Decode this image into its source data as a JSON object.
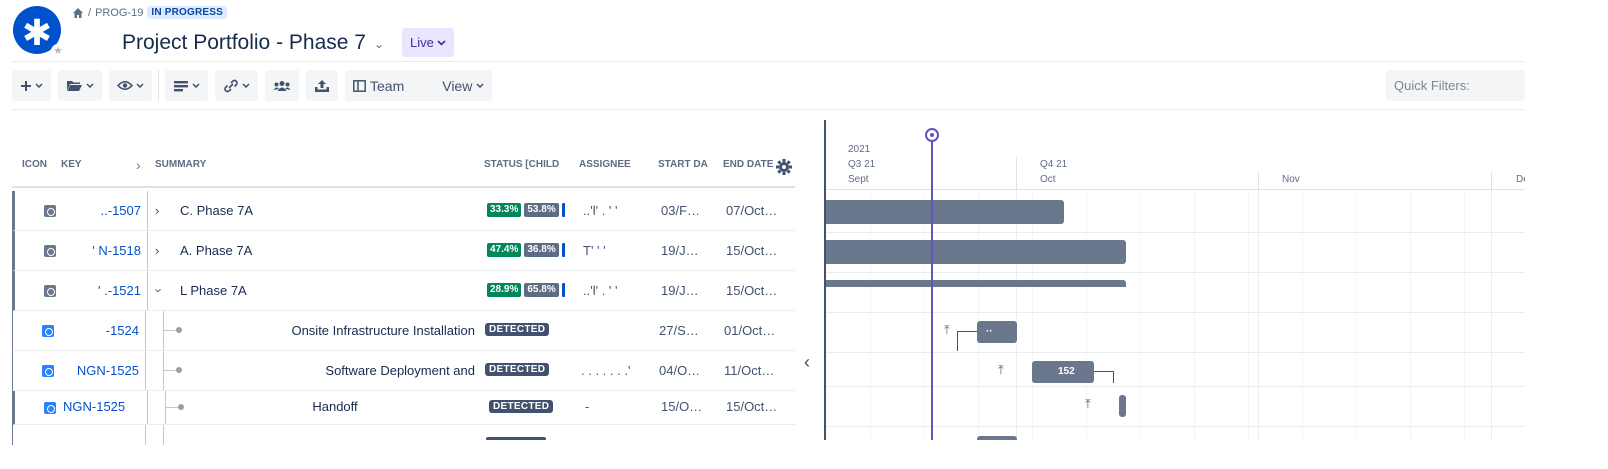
{
  "header": {
    "breadcrumb": {
      "separator": "/",
      "issue_key": "PROG-19",
      "status": "IN PROGRESS"
    },
    "title": "Project Portfolio - Phase 7",
    "title_caret": "⌄",
    "live_label": "Live",
    "logo_icon": "asterisk-icon"
  },
  "toolbar": {
    "view_prefix": "Team",
    "view_suffix": "View",
    "quick_filters_placeholder": "Quick Filters:"
  },
  "grid": {
    "columns": {
      "icon": "ICON",
      "key": "KEY",
      "summary": "SUMMARY",
      "status": "STATUS [CHILD",
      "assignee": "ASSIGNEE",
      "start": "START DA",
      "end": "END DATE"
    },
    "rows": [
      {
        "key": "..-1507",
        "summary": "C.   Phase 7A",
        "done": "33.3%",
        "inprog": "53.8%",
        "assignee": "..'l' .  '  '",
        "start": "03/F…",
        "end": "07/Oct…"
      },
      {
        "key": "' N-1518",
        "summary": "A.    Phase 7A",
        "done": "47.4%",
        "inprog": "36.8%",
        "assignee": "T'   '  '",
        "start": "19/J…",
        "end": "15/Oct…"
      },
      {
        "key": "' .-1521",
        "summary": "L       Phase 7A",
        "done": "28.9%",
        "inprog": "65.8%",
        "assignee": "..'l' .  '  '",
        "start": "19/J…",
        "end": "15/Oct…"
      },
      {
        "key": "-1524",
        "summary": "Onsite Infrastructure Installation",
        "status": "DETECTED",
        "assignee": "",
        "start": "27/S…",
        "end": "01/Oct…"
      },
      {
        "key": "NGN-1525",
        "summary": "Software Deployment and",
        "status": "DETECTED",
        "assignee": ". . . . .   . .'",
        "start": "04/O…",
        "end": "11/Oct…"
      },
      {
        "key": "NGN-1525",
        "summary": "Handoff",
        "status": "DETECTED",
        "assignee": "-",
        "start": "15/O…",
        "end": "15/Oct…"
      }
    ]
  },
  "timeline": {
    "year": "2021",
    "quarters": [
      "Q3 21",
      "Q4 21"
    ],
    "months": [
      "Sept",
      "Oct",
      "Nov",
      "De"
    ],
    "bar_labels": {
      "row4": "··",
      "row5": "152"
    }
  }
}
